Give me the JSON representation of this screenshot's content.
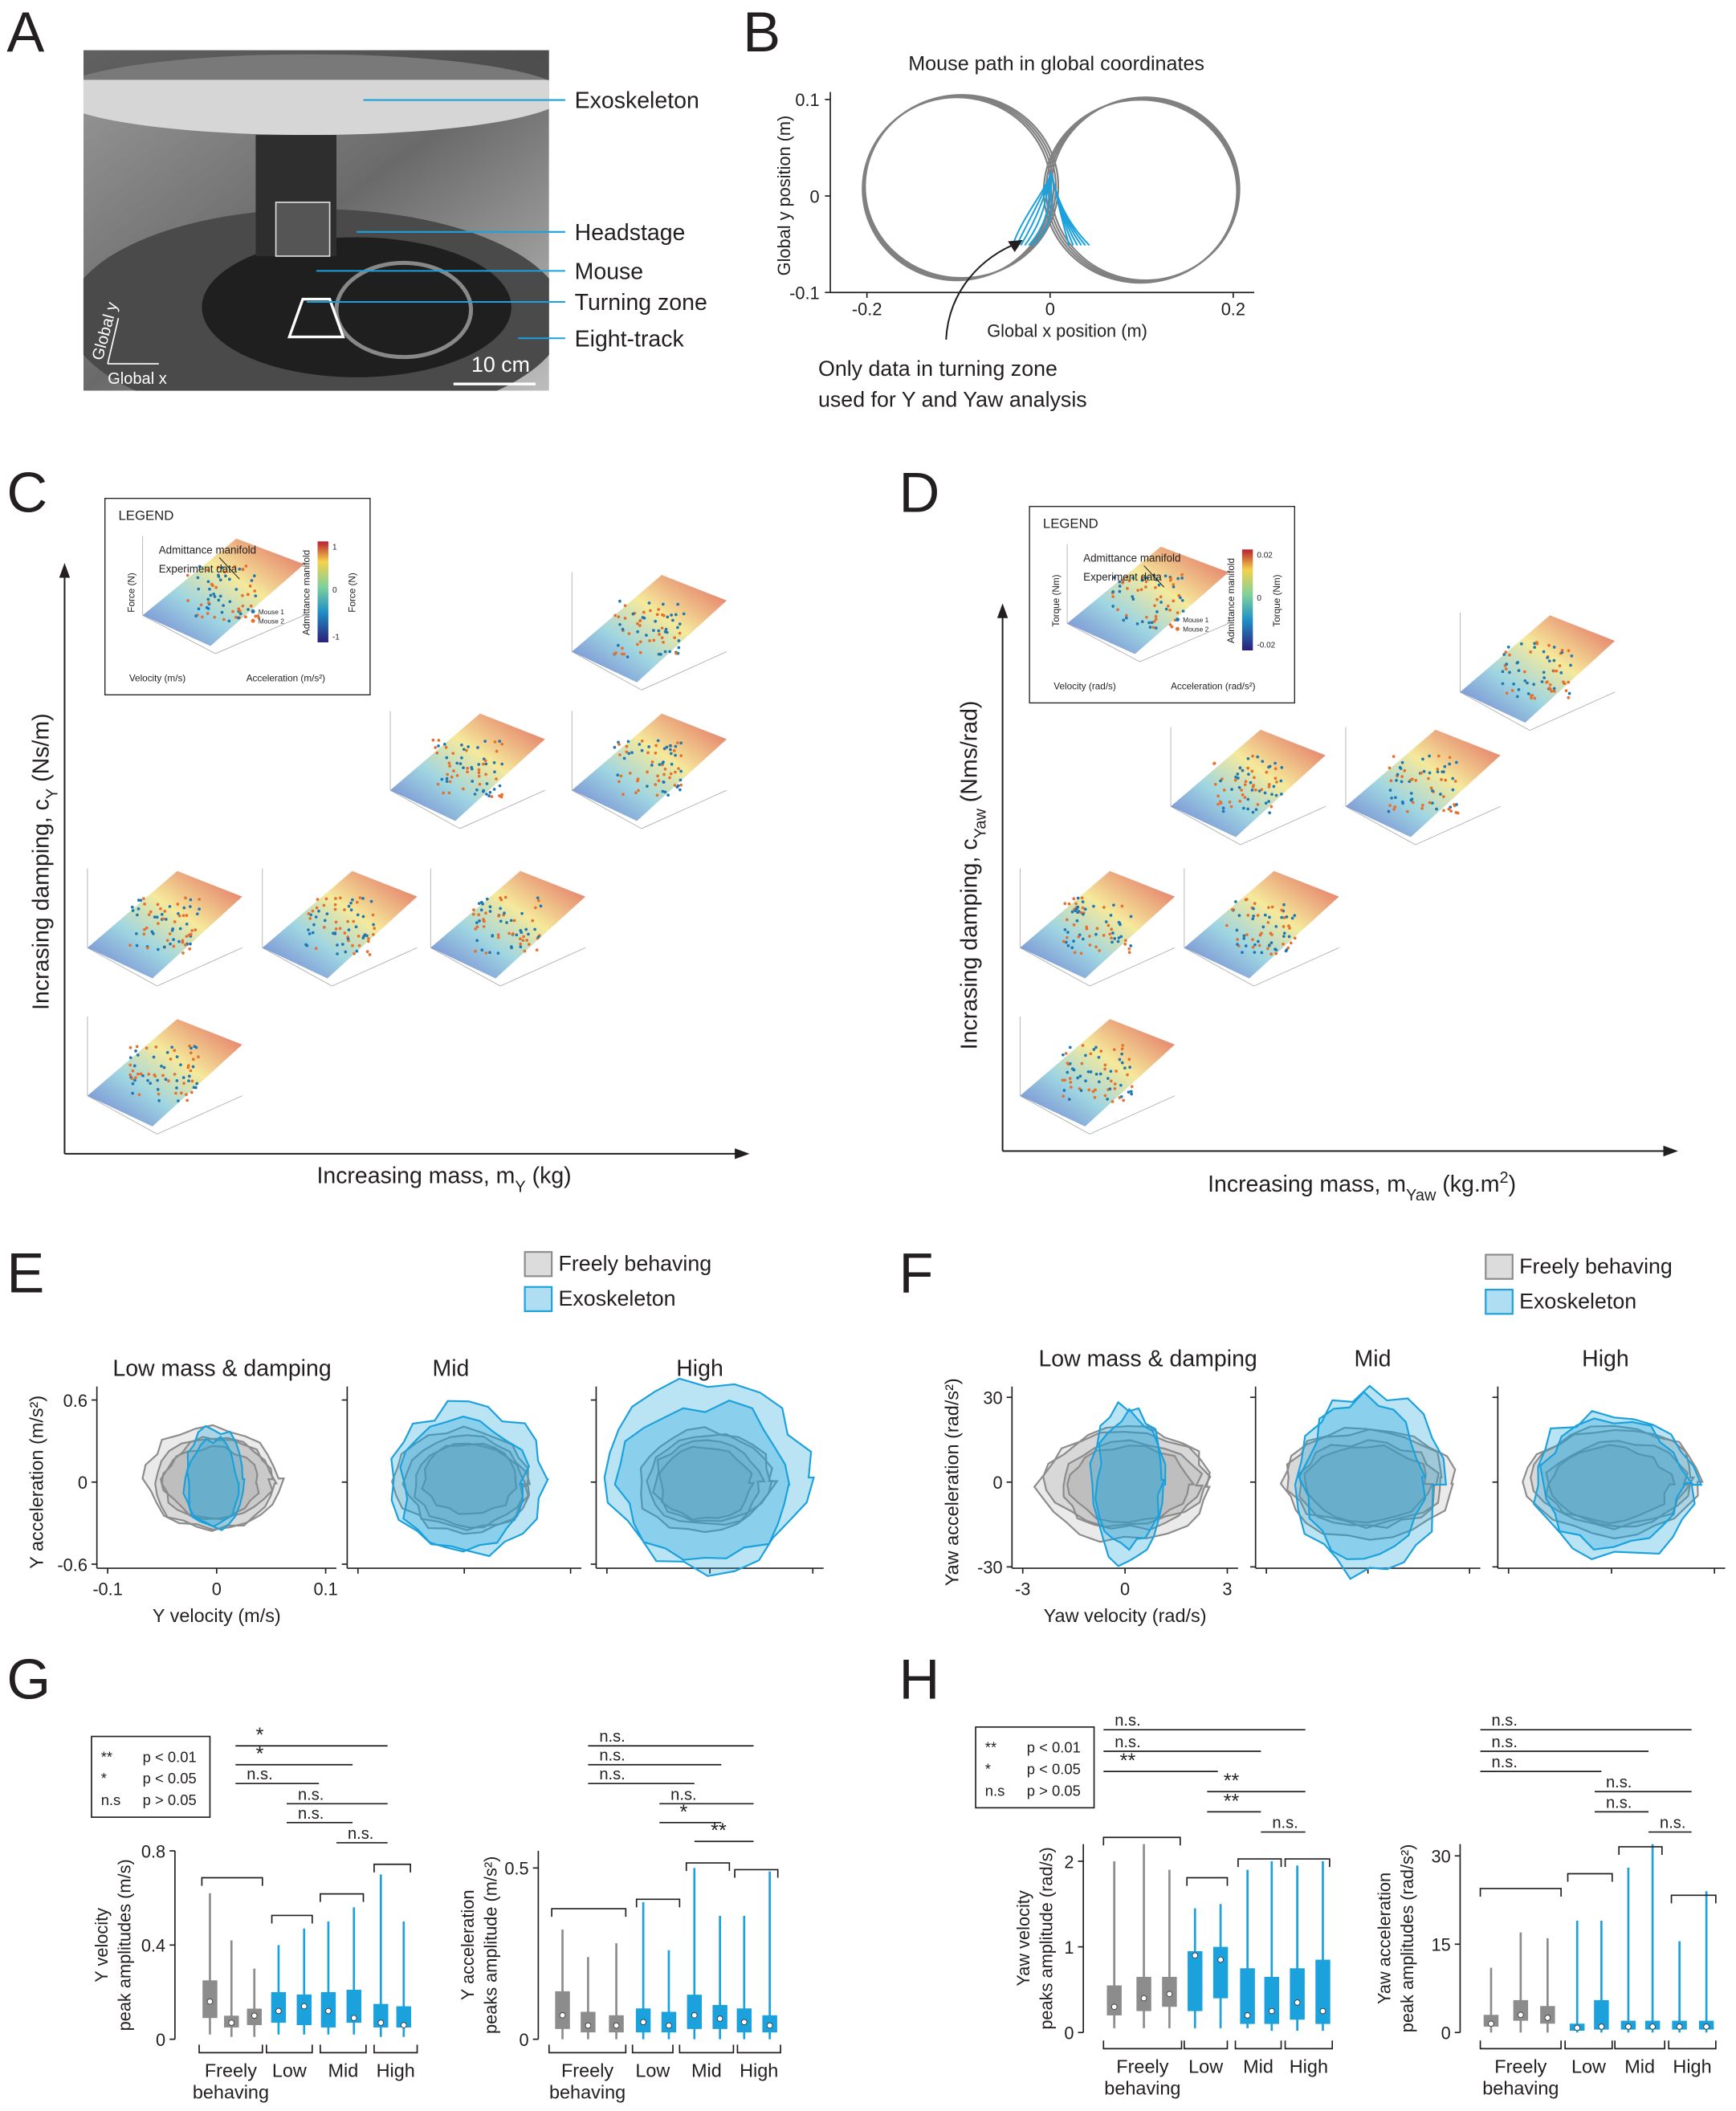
{
  "panel_letters": [
    "A",
    "B",
    "C",
    "D",
    "E",
    "F",
    "G",
    "H"
  ],
  "colors": {
    "freely": "#8c8c8c",
    "exo": "#1ba1dc",
    "path": "#808080"
  },
  "a": {
    "labels": [
      "Exoskeleton",
      "Headstage",
      "Mouse",
      "Turning zone",
      "Eight-track"
    ],
    "global_x": "Global x",
    "global_y": "Global y",
    "scale_bar": "10 cm"
  },
  "b": {
    "title": "Mouse path in global coordinates",
    "xlabel": "Global x position (m)",
    "ylabel": "Global y position (m)",
    "xlim": [
      -0.24,
      0.22
    ],
    "ylim": [
      -0.1,
      0.105
    ],
    "xticks": [
      -0.2,
      0,
      0.2
    ],
    "yticks": [
      -0.1,
      0,
      0.1
    ],
    "note": [
      "Only data in turning zone",
      "used for Y and Yaw analysis"
    ]
  },
  "c": {
    "legend_title": "LEGEND",
    "manifold": "Admittance manifold",
    "experiment": "Experiment data",
    "mice": [
      "Mouse 1",
      "Mouse 2"
    ],
    "zlabel": "Force (N)",
    "xlabel3d": "Velocity (m/s)",
    "ylabel3d": "Acceleration (m/s²)",
    "colorbar_label": "Admittance manifold",
    "colorbar_ticks": [
      1,
      0,
      -1
    ],
    "ylabel": [
      "Incrasing damping, c",
      "Y",
      " (Ns/m)"
    ],
    "xlabel": [
      "Increasing mass, m",
      "Y",
      " (kg)"
    ]
  },
  "d": {
    "legend_title": "LEGEND",
    "manifold": "Admittance manifold",
    "experiment": "Experiment data",
    "mice": [
      "Mouse 1",
      "Mouse 2"
    ],
    "zlabel": "Torque (Nm)",
    "xlabel3d": "Velocity (rad/s)",
    "ylabel3d": "Acceleration (rad/s²)",
    "colorbar_label": "Admittance manifold",
    "colorbar_ticks": [
      0.02,
      0,
      -0.02
    ],
    "ylabel": [
      "Incrasing damping, c",
      "Yaw",
      " (Nms/rad)"
    ],
    "xlabel": [
      "Increasing mass, m",
      "Yaw",
      " (kg.m",
      "2",
      ")"
    ]
  },
  "e": {
    "legend": [
      "Freely behaving",
      "Exoskeleton"
    ],
    "titles": [
      "Low mass & damping",
      "Mid",
      "High"
    ],
    "xlabel": "Y velocity (m/s)",
    "ylabel": "Y acceleration (m/s²)",
    "xlim": [
      -0.1,
      0.1
    ],
    "ylim": [
      -0.6,
      0.6
    ],
    "xticks": [
      -0.1,
      0,
      0.1
    ],
    "yticks": [
      -0.6,
      0,
      0.6
    ]
  },
  "f": {
    "legend": [
      "Freely behaving",
      "Exoskeleton"
    ],
    "titles": [
      "Low mass & damping",
      "Mid",
      "High"
    ],
    "xlabel": "Yaw velocity (rad/s)",
    "ylabel": "Yaw acceleration (rad/s²)",
    "xlim": [
      -3,
      3
    ],
    "ylim": [
      -30,
      30
    ],
    "xticks": [
      -3,
      0,
      3
    ],
    "yticks": [
      -30,
      0,
      30
    ]
  },
  "g": {
    "sig_legend": [
      [
        "**",
        "p < 0.01"
      ],
      [
        "*",
        "p < 0.05"
      ],
      [
        "n.s",
        "p > 0.05"
      ]
    ],
    "groups": [
      "Freely",
      "behaving",
      "Low",
      "Mid",
      "High"
    ],
    "charts": [
      {
        "ylabel": [
          "Y velocity",
          "peak amplitudes (m/s)"
        ],
        "ylim": [
          0,
          0.8
        ],
        "yticks": [
          0,
          0.4,
          0.8
        ],
        "sig": [
          "*",
          "*",
          "n.s.",
          "n.s.",
          "n.s.",
          "n.s."
        ],
        "boxes": [
          [
            0.02,
            0.09,
            0.16,
            0.25,
            0.62
          ],
          [
            0.01,
            0.05,
            0.07,
            0.1,
            0.42
          ],
          [
            0.01,
            0.06,
            0.1,
            0.13,
            0.3
          ],
          [
            0.02,
            0.07,
            0.12,
            0.2,
            0.4
          ],
          [
            0.02,
            0.06,
            0.14,
            0.19,
            0.47
          ],
          [
            0.02,
            0.05,
            0.12,
            0.2,
            0.5
          ],
          [
            0.02,
            0.07,
            0.09,
            0.21,
            0.56
          ],
          [
            0.01,
            0.05,
            0.07,
            0.15,
            0.7
          ],
          [
            0.01,
            0.05,
            0.06,
            0.14,
            0.5
          ]
        ]
      },
      {
        "ylabel": [
          "Y acceleration",
          "peaks amplitude (m/s²)"
        ],
        "ylim": [
          0,
          0.55
        ],
        "yticks": [
          0,
          0.5
        ],
        "sig": [
          "n.s.",
          "n.s.",
          "n.s.",
          "n.s.",
          "*",
          "**"
        ],
        "boxes": [
          [
            0,
            0.03,
            0.07,
            0.14,
            0.32
          ],
          [
            0,
            0.02,
            0.04,
            0.08,
            0.24
          ],
          [
            0,
            0.02,
            0.04,
            0.07,
            0.28
          ],
          [
            0,
            0.02,
            0.05,
            0.09,
            0.4
          ],
          [
            0,
            0.02,
            0.04,
            0.08,
            0.26
          ],
          [
            0,
            0.03,
            0.07,
            0.13,
            0.5
          ],
          [
            0,
            0.03,
            0.06,
            0.1,
            0.36
          ],
          [
            0,
            0.02,
            0.05,
            0.09,
            0.36
          ],
          [
            0,
            0.02,
            0.04,
            0.07,
            0.49
          ]
        ]
      }
    ]
  },
  "h": {
    "sig_legend": [
      [
        "**",
        "p < 0.01"
      ],
      [
        "*",
        "p < 0.05"
      ],
      [
        "n.s",
        "p > 0.05"
      ]
    ],
    "groups": [
      "Freely",
      "behaving",
      "Low",
      "Mid",
      "High"
    ],
    "charts": [
      {
        "ylabel": [
          "Yaw velocity",
          "peaks amplitude (rad/s)"
        ],
        "ylim": [
          0,
          2.2
        ],
        "yticks": [
          0,
          1,
          2
        ],
        "sig": [
          "n.s.",
          "n.s.",
          "**",
          "**",
          "**",
          "n.s."
        ],
        "boxes": [
          [
            0.05,
            0.2,
            0.3,
            0.55,
            2.0
          ],
          [
            0.05,
            0.25,
            0.4,
            0.65,
            2.2
          ],
          [
            0.05,
            0.3,
            0.45,
            0.65,
            1.9
          ],
          [
            0.05,
            0.25,
            0.9,
            0.95,
            1.45
          ],
          [
            0.05,
            0.4,
            0.85,
            1.0,
            1.5
          ],
          [
            0.05,
            0.1,
            0.2,
            0.75,
            1.9
          ],
          [
            0.02,
            0.1,
            0.25,
            0.65,
            2.0
          ],
          [
            0.02,
            0.15,
            0.35,
            0.75,
            1.95
          ],
          [
            0.02,
            0.1,
            0.25,
            0.85,
            2.0
          ]
        ]
      },
      {
        "ylabel": [
          "Yaw acceleration",
          "peak amplitudes (rad/s²)"
        ],
        "ylim": [
          0,
          32
        ],
        "yticks": [
          0,
          15,
          30
        ],
        "sig": [
          "n.s.",
          "n.s.",
          "n.s.",
          "n.s.",
          "n.s.",
          "n.s."
        ],
        "boxes": [
          [
            0,
            1,
            1.5,
            3,
            11
          ],
          [
            0,
            2,
            3,
            5.5,
            17
          ],
          [
            0,
            1.5,
            2.5,
            4.5,
            16
          ],
          [
            0,
            0.3,
            0.8,
            1.5,
            19
          ],
          [
            0,
            0.5,
            1,
            5.5,
            19
          ],
          [
            0,
            0.5,
            1,
            2,
            28
          ],
          [
            0,
            0.5,
            1,
            2,
            32
          ],
          [
            0,
            0.5,
            1,
            2,
            15.5
          ],
          [
            0,
            0.5,
            1,
            2,
            24
          ]
        ]
      }
    ]
  }
}
